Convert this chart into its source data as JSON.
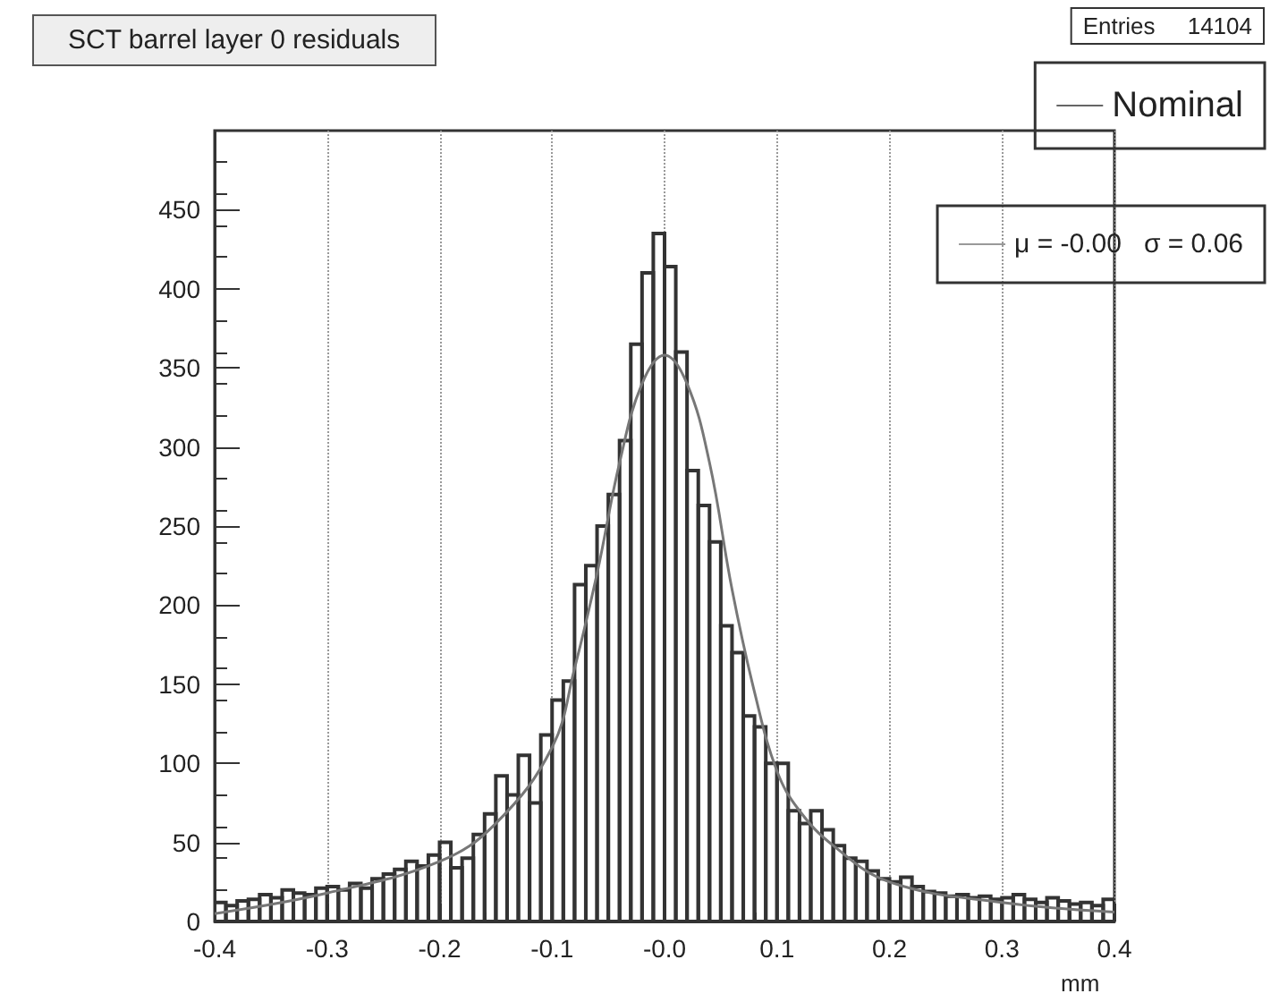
{
  "chart_data": {
    "type": "histogram",
    "title": "SCT barrel layer 0 residuals",
    "xlabel": "mm",
    "annotations": [
      "Entries     14104"
    ],
    "bins": [
      -0.4,
      -0.39,
      -0.38,
      -0.37,
      -0.36,
      -0.35,
      -0.34,
      -0.33,
      -0.32,
      -0.31,
      -0.3,
      -0.29,
      -0.28,
      -0.27,
      -0.26,
      -0.25,
      -0.24,
      -0.23,
      -0.22,
      -0.21,
      -0.2,
      -0.19,
      -0.18,
      -0.17,
      -0.16,
      -0.15,
      -0.14,
      -0.13,
      -0.12,
      -0.11,
      -0.1,
      -0.09,
      -0.08,
      -0.07,
      -0.06,
      -0.05,
      -0.04,
      -0.03,
      -0.02,
      -0.01,
      0,
      0.01,
      0.02,
      0.03,
      0.04,
      0.05,
      0.06,
      0.07,
      0.08,
      0.09,
      0.1,
      0.11,
      0.12,
      0.13,
      0.14,
      0.15,
      0.16,
      0.17,
      0.18,
      0.19,
      0.2,
      0.21,
      0.22,
      0.23,
      0.24,
      0.25,
      0.26,
      0.27,
      0.28,
      0.29,
      0.3,
      0.31,
      0.32,
      0.33,
      0.34,
      0.35,
      0.36,
      0.37,
      0.38,
      0.39,
      0.4
    ],
    "series": [
      {
        "name": "Nominal",
        "color": "#333333",
        "values": [
          12,
          10,
          13,
          14,
          17,
          15,
          20,
          18,
          17,
          21,
          22,
          20,
          24,
          21,
          27,
          30,
          33,
          38,
          35,
          42,
          50,
          34,
          40,
          55,
          68,
          92,
          80,
          105,
          75,
          118,
          140,
          152,
          213,
          225,
          250,
          270,
          304,
          365,
          410,
          435,
          414,
          360,
          285,
          263,
          240,
          187,
          170,
          130,
          123,
          100,
          100,
          70,
          62,
          70,
          58,
          48,
          40,
          38,
          32,
          27,
          25,
          28,
          22,
          19,
          18,
          16,
          17,
          15,
          16,
          14,
          15,
          17,
          14,
          12,
          15,
          13,
          11,
          12,
          10,
          14
        ]
      },
      {
        "name": "μ = -0.00   σ = 0.06",
        "type": "line",
        "color": "#777777",
        "x": [
          -0.4,
          -0.3,
          -0.2,
          -0.15,
          -0.1,
          -0.08,
          -0.06,
          -0.04,
          -0.02,
          0,
          0.02,
          0.04,
          0.06,
          0.08,
          0.1,
          0.12,
          0.15,
          0.2,
          0.3,
          0.4
        ],
        "values": [
          5,
          18,
          38,
          62,
          110,
          160,
          220,
          290,
          340,
          358,
          340,
          290,
          210,
          145,
          95,
          70,
          48,
          25,
          12,
          6
        ]
      }
    ],
    "xlim": [
      -0.4,
      0.4
    ],
    "xticks": [
      -0.4,
      -0.3,
      -0.2,
      -0.1,
      {
        "value": 0,
        "label": "-0.0"
      },
      0.1,
      0.2,
      0.3,
      0.4
    ],
    "ylim": [
      0,
      500
    ],
    "yticks": [
      0,
      50,
      100,
      150,
      200,
      250,
      300,
      350,
      400,
      450
    ],
    "grid": "x",
    "legend": "top right",
    "marker": "none"
  }
}
